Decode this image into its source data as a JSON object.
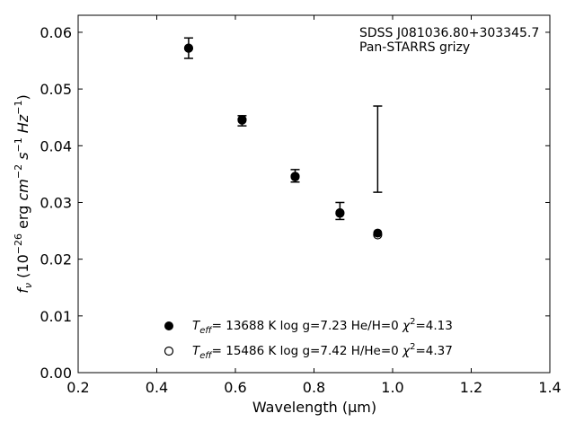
{
  "chart_data": {
    "type": "scatter",
    "xlabel": "Wavelength (μm)",
    "ylabel_parts": {
      "f": "f",
      "nu": "ν",
      "open": " (10",
      "exp1": "−26",
      "mid1": " erg ",
      "cm": "cm",
      "exp2": "−2",
      "s": " s",
      "exp3": "−1",
      "hz": " Hz",
      "exp4": "−1",
      "close": ")"
    },
    "annotation": [
      "SDSS J081036.80+303345.7",
      "Pan-STARRS grizy"
    ],
    "xlim": [
      0.2,
      1.4
    ],
    "ylim": [
      0.0,
      0.063
    ],
    "xticks": [
      "0.2",
      "0.4",
      "0.6",
      "0.8",
      "1.0",
      "1.2",
      "1.4"
    ],
    "yticks": [
      "0.00",
      "0.01",
      "0.02",
      "0.03",
      "0.04",
      "0.05",
      "0.06"
    ],
    "grid": false,
    "legend_position": "lower-center",
    "observed": {
      "x": [
        0.481,
        0.617,
        0.752,
        0.866,
        0.962
      ],
      "y": [
        0.0572,
        0.0444,
        0.0347,
        0.0285,
        0.0394
      ],
      "yerr": [
        0.0018,
        0.0009,
        0.0011,
        0.0015,
        0.0076
      ]
    },
    "series": [
      {
        "name": "He/H=0",
        "marker": "filled-circle",
        "x": [
          0.481,
          0.617,
          0.752,
          0.866,
          0.962
        ],
        "y": [
          0.0572,
          0.0445,
          0.0345,
          0.0282,
          0.0246
        ],
        "legend": {
          "teff_T": "T",
          "teff_sub": "eff",
          "text": "= 13688 K  log g=7.23  He/H=0  ",
          "chi": "χ",
          "chi_sup": "2",
          "chi_val": "=4.13"
        }
      },
      {
        "name": "H/He=0",
        "marker": "open-circle",
        "x": [
          0.481,
          0.617,
          0.752,
          0.866,
          0.962
        ],
        "y": [
          0.0572,
          0.0446,
          0.0346,
          0.0281,
          0.0243
        ],
        "legend": {
          "teff_T": "T",
          "teff_sub": "eff",
          "text": "= 15486 K  log g=7.42  H/He=0  ",
          "chi": "χ",
          "chi_sup": "2",
          "chi_val": "=4.37"
        }
      }
    ]
  }
}
